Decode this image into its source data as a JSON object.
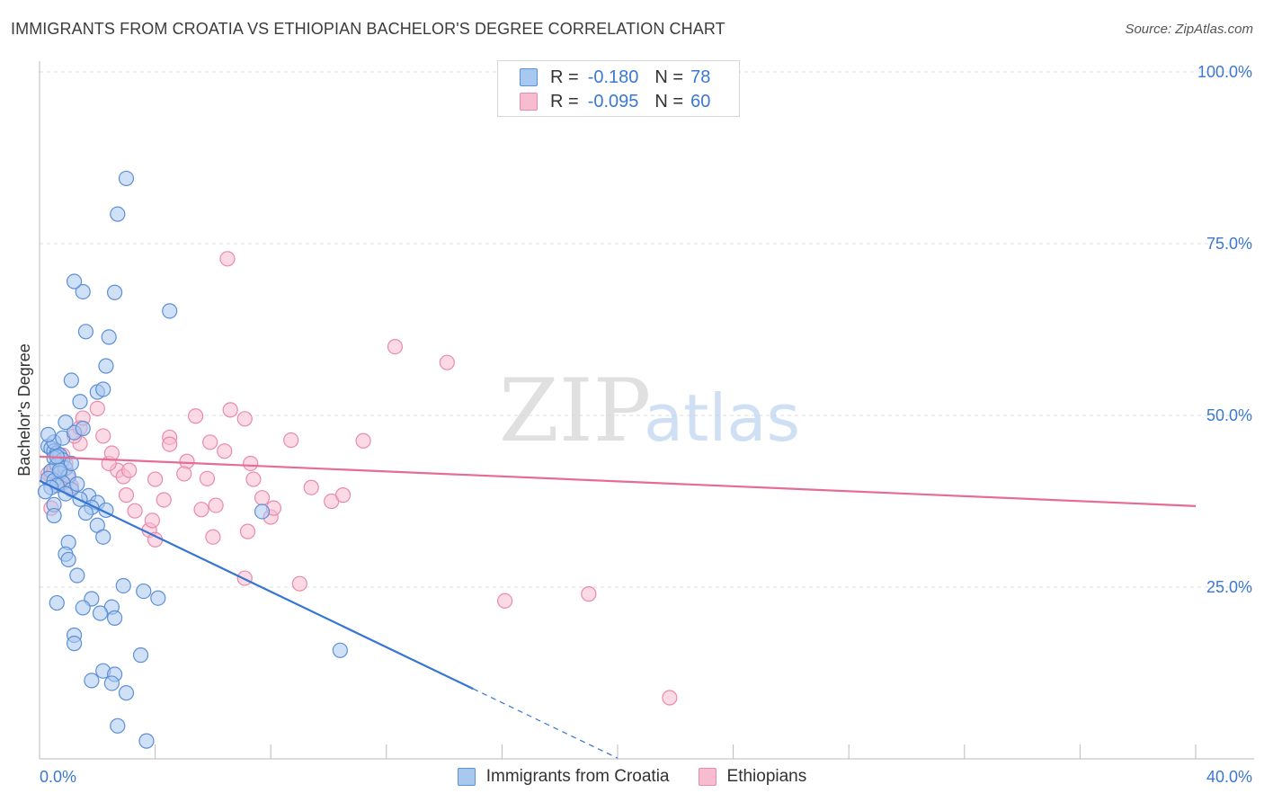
{
  "title": "IMMIGRANTS FROM CROATIA VS ETHIOPIAN BACHELOR'S DEGREE CORRELATION CHART",
  "source": "Source: ZipAtlas.com",
  "watermark": {
    "zip": "ZIP",
    "atlas": "atlas"
  },
  "colors": {
    "blue_fill": "#a9c8f0",
    "blue_stroke": "#5b8fd6",
    "blue_line": "#3575d3",
    "pink_fill": "#f7bcd0",
    "pink_stroke": "#e98aab",
    "pink_line": "#e66b96",
    "tick_label": "#3a78d4",
    "grid": "#dddddd"
  },
  "legend": {
    "rows": [
      {
        "r_label": "R =",
        "r_value": "-0.180",
        "n_label": "N =",
        "n_value": "78"
      },
      {
        "r_label": "R =",
        "r_value": "-0.095",
        "n_label": "N =",
        "n_value": "60"
      }
    ]
  },
  "chart_data": {
    "type": "scatter",
    "title": "IMMIGRANTS FROM CROATIA VS ETHIOPIAN BACHELOR'S DEGREE CORRELATION CHART",
    "xlabel": "",
    "ylabel": "Bachelor's Degree",
    "xlim": [
      0,
      40
    ],
    "ylim": [
      0,
      100
    ],
    "x_tick_labels": [
      "0.0%",
      "40.0%"
    ],
    "y_tick_values": [
      25,
      50,
      75,
      100
    ],
    "y_tick_labels": [
      "25.0%",
      "50.0%",
      "75.0%",
      "100.0%"
    ],
    "grid": true,
    "legend_placement": "top-center",
    "series": [
      {
        "name": "Immigrants from Croatia",
        "color": "#a9c8f0",
        "R": -0.18,
        "N": 78,
        "trend": {
          "x": [
            0,
            15
          ],
          "y": [
            40.5,
            10.2
          ],
          "dashed_to": [
            20,
            0.1
          ]
        },
        "points": [
          [
            0.3,
            45.5
          ],
          [
            0.4,
            45.2
          ],
          [
            0.5,
            44.8
          ],
          [
            0.6,
            44.5
          ],
          [
            0.7,
            44.2
          ],
          [
            0.5,
            43.8
          ],
          [
            0.8,
            43.5
          ],
          [
            0.6,
            42.8
          ],
          [
            0.9,
            42.3
          ],
          [
            0.4,
            41.9
          ],
          [
            0.7,
            41.6
          ],
          [
            1.0,
            41.2
          ],
          [
            0.3,
            40.8
          ],
          [
            0.5,
            40.5
          ],
          [
            0.8,
            40.2
          ],
          [
            0.6,
            39.8
          ],
          [
            0.4,
            39.5
          ],
          [
            1.1,
            39.2
          ],
          [
            0.2,
            38.9
          ],
          [
            0.9,
            38.6
          ],
          [
            0.5,
            46.1
          ],
          [
            0.8,
            46.7
          ],
          [
            0.3,
            47.2
          ],
          [
            1.2,
            47.5
          ],
          [
            1.5,
            48.1
          ],
          [
            0.9,
            49.0
          ],
          [
            0.6,
            44.0
          ],
          [
            1.1,
            43.0
          ],
          [
            0.7,
            42.0
          ],
          [
            1.3,
            40.0
          ],
          [
            1.7,
            38.3
          ],
          [
            1.4,
            37.8
          ],
          [
            2.0,
            37.3
          ],
          [
            0.5,
            37.0
          ],
          [
            1.8,
            36.6
          ],
          [
            2.3,
            36.2
          ],
          [
            1.6,
            35.8
          ],
          [
            0.5,
            35.4
          ],
          [
            2.0,
            34.0
          ],
          [
            2.2,
            32.3
          ],
          [
            1.0,
            31.5
          ],
          [
            0.9,
            29.8
          ],
          [
            1.0,
            29.0
          ],
          [
            1.3,
            26.7
          ],
          [
            2.9,
            25.2
          ],
          [
            3.6,
            24.4
          ],
          [
            4.1,
            23.4
          ],
          [
            1.8,
            23.3
          ],
          [
            0.6,
            22.7
          ],
          [
            1.5,
            22.0
          ],
          [
            2.5,
            22.1
          ],
          [
            2.1,
            21.2
          ],
          [
            2.6,
            20.5
          ],
          [
            1.2,
            18.0
          ],
          [
            1.2,
            16.8
          ],
          [
            3.5,
            15.1
          ],
          [
            2.2,
            12.8
          ],
          [
            2.6,
            12.3
          ],
          [
            1.8,
            11.4
          ],
          [
            2.5,
            11.0
          ],
          [
            3.0,
            9.6
          ],
          [
            2.7,
            4.8
          ],
          [
            3.7,
            2.6
          ],
          [
            1.1,
            55.1
          ],
          [
            1.4,
            52.0
          ],
          [
            2.0,
            53.4
          ],
          [
            2.2,
            53.8
          ],
          [
            2.3,
            57.2
          ],
          [
            1.6,
            62.2
          ],
          [
            2.4,
            61.4
          ],
          [
            3.0,
            84.5
          ],
          [
            2.7,
            79.3
          ],
          [
            1.5,
            68.0
          ],
          [
            2.6,
            67.9
          ],
          [
            1.2,
            69.5
          ],
          [
            4.5,
            65.2
          ],
          [
            7.7,
            36.0
          ],
          [
            10.4,
            15.8
          ]
        ]
      },
      {
        "name": "Ethiopians",
        "color": "#f7bcd0",
        "R": -0.095,
        "N": 60,
        "trend": {
          "x": [
            0,
            40
          ],
          "y": [
            44.0,
            36.8
          ]
        },
        "points": [
          [
            0.3,
            41.5
          ],
          [
            0.4,
            41.2
          ],
          [
            0.5,
            42.0
          ],
          [
            0.7,
            41.0
          ],
          [
            0.9,
            43.0
          ],
          [
            0.6,
            40.2
          ],
          [
            1.0,
            40.8
          ],
          [
            1.1,
            39.7
          ],
          [
            0.4,
            36.5
          ],
          [
            0.8,
            44.2
          ],
          [
            1.4,
            45.9
          ],
          [
            1.2,
            47.0
          ],
          [
            1.4,
            48.2
          ],
          [
            1.5,
            49.6
          ],
          [
            2.0,
            51.0
          ],
          [
            2.2,
            47.0
          ],
          [
            2.7,
            42.0
          ],
          [
            2.4,
            43.0
          ],
          [
            2.5,
            44.5
          ],
          [
            2.9,
            41.1
          ],
          [
            3.1,
            42.0
          ],
          [
            3.0,
            38.4
          ],
          [
            3.3,
            36.1
          ],
          [
            3.8,
            33.3
          ],
          [
            3.9,
            34.7
          ],
          [
            4.0,
            31.9
          ],
          [
            4.0,
            40.7
          ],
          [
            4.3,
            37.7
          ],
          [
            4.5,
            46.8
          ],
          [
            4.5,
            45.8
          ],
          [
            5.1,
            43.3
          ],
          [
            5.0,
            41.5
          ],
          [
            5.4,
            49.9
          ],
          [
            5.6,
            36.3
          ],
          [
            5.8,
            40.8
          ],
          [
            5.9,
            46.1
          ],
          [
            6.0,
            32.3
          ],
          [
            6.4,
            44.8
          ],
          [
            6.1,
            36.9
          ],
          [
            6.6,
            50.8
          ],
          [
            7.1,
            49.5
          ],
          [
            7.3,
            43.0
          ],
          [
            7.4,
            40.7
          ],
          [
            7.2,
            33.1
          ],
          [
            7.7,
            38.0
          ],
          [
            8.0,
            35.2
          ],
          [
            8.1,
            36.5
          ],
          [
            8.7,
            46.4
          ],
          [
            9.4,
            39.5
          ],
          [
            10.1,
            37.5
          ],
          [
            10.5,
            38.4
          ],
          [
            11.2,
            46.3
          ],
          [
            12.3,
            60.0
          ],
          [
            14.1,
            57.7
          ],
          [
            9.0,
            25.5
          ],
          [
            7.1,
            26.3
          ],
          [
            16.1,
            23.0
          ],
          [
            19.0,
            24.0
          ],
          [
            6.5,
            72.8
          ],
          [
            21.8,
            8.9
          ]
        ]
      }
    ]
  }
}
